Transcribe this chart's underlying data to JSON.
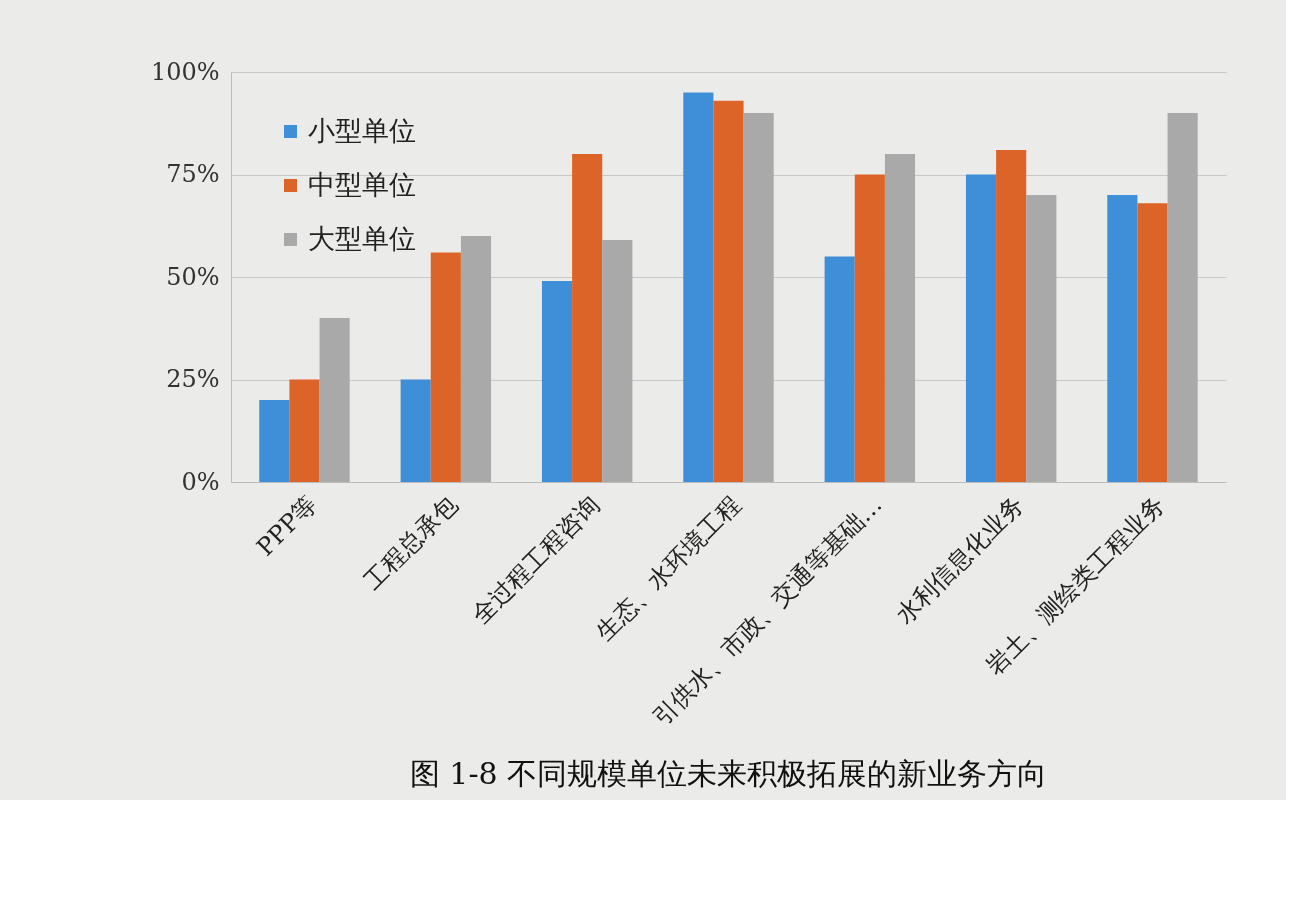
{
  "chart_data": {
    "type": "bar",
    "categories": [
      "PPP等",
      "工程总承包",
      "全过程工程咨询",
      "生态、水环境工程",
      "引供水、市政、交通等基础…",
      "水利信息化业务",
      "岩土、测绘类工程业务"
    ],
    "series": [
      {
        "name": "小型单位",
        "color": "#3f8fd8",
        "values": [
          20,
          25,
          49,
          95,
          55,
          75,
          70
        ]
      },
      {
        "name": "中型单位",
        "color": "#dd6428",
        "values": [
          25,
          56,
          80,
          93,
          75,
          81,
          68
        ]
      },
      {
        "name": "大型单位",
        "color": "#a9a9a9",
        "values": [
          40,
          60,
          59,
          90,
          80,
          70,
          90
        ]
      }
    ],
    "ylim": [
      0,
      100
    ],
    "yticks": [
      {
        "value": 0,
        "label": "0%"
      },
      {
        "value": 25,
        "label": "25%"
      },
      {
        "value": 50,
        "label": "50%"
      },
      {
        "value": 75,
        "label": "75%"
      },
      {
        "value": 100,
        "label": "100%"
      }
    ],
    "grid": "y",
    "legend": "top left",
    "annotations": [
      "图 1-8  不同规模单位未来积极拓展的新业务方向"
    ]
  }
}
